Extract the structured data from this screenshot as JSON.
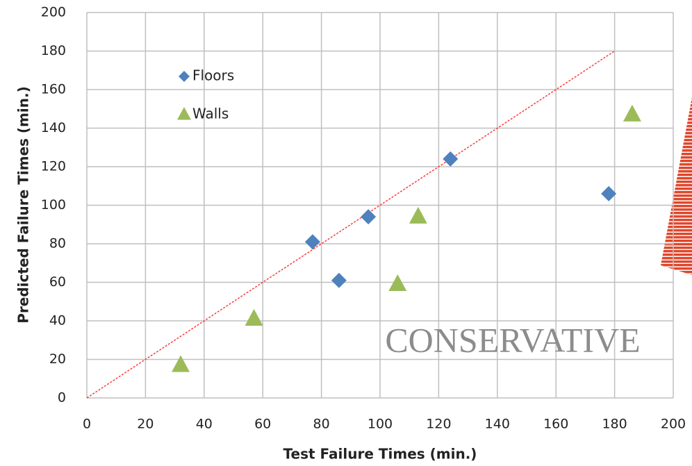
{
  "chart_data": {
    "type": "scatter",
    "xlabel": "Test Failure Times (min.)",
    "ylabel": "Predicted Failure Times (min.)",
    "annotation": "CONSERVATIVE",
    "xlim": [
      0,
      200
    ],
    "ylim": [
      0,
      200
    ],
    "xticks": [
      0,
      20,
      40,
      60,
      80,
      100,
      120,
      140,
      160,
      180,
      200
    ],
    "yticks": [
      0,
      20,
      40,
      60,
      80,
      100,
      120,
      140,
      160,
      180,
      200
    ],
    "grid": true,
    "legend": "upper left",
    "series": [
      {
        "name": "Floors",
        "color": "#4f81bd",
        "marker": "diamond",
        "x": [
          77,
          86,
          96,
          124,
          178
        ],
        "values": [
          81,
          61,
          94,
          124,
          106
        ]
      },
      {
        "name": "Walls",
        "color": "#9bbb59",
        "marker": "triangle",
        "x": [
          32,
          57,
          106,
          113,
          186
        ],
        "values": [
          17,
          41,
          59,
          94,
          147
        ]
      }
    ],
    "reference_line": {
      "color": "#ff3b3b",
      "x": [
        0,
        180
      ],
      "y": [
        0,
        180
      ]
    }
  }
}
